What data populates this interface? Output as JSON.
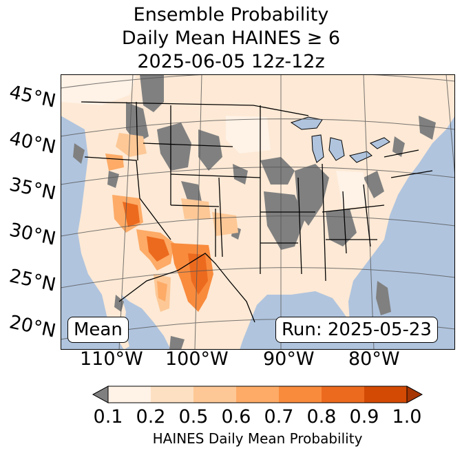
{
  "title": {
    "line1": "Ensemble Probability",
    "line2": "Daily Mean HAINES ≥ 6",
    "line3": "2025-06-05 12z-12z"
  },
  "map": {
    "lat_labels": [
      "45°N",
      "40°N",
      "35°N",
      "30°N",
      "25°N",
      "20°N"
    ],
    "lon_labels": [
      "110°W",
      "100°W",
      "90°W",
      "80°W"
    ],
    "mean_badge": "Mean",
    "run_badge": "Run: 2025-05-23",
    "colors": {
      "ocean": "#b0c4de",
      "land_base": "#fde9d5",
      "missing": "#808080",
      "border": "#000000",
      "gridline": "#555555"
    }
  },
  "colorbar": {
    "label": "HAINES Daily Mean Probability",
    "ticks": [
      "0.1",
      "0.2",
      "0.5",
      "0.6",
      "0.7",
      "0.8",
      "0.9",
      "1.0"
    ],
    "under_color": "#808080",
    "bins": [
      {
        "range": "0.1-0.2",
        "color": "#fff2e6"
      },
      {
        "range": "0.2-0.5",
        "color": "#fde0c2"
      },
      {
        "range": "0.5-0.6",
        "color": "#fdc896"
      },
      {
        "range": "0.6-0.7",
        "color": "#fdab67"
      },
      {
        "range": "0.7-0.8",
        "color": "#f98b3d"
      },
      {
        "range": "0.8-0.9",
        "color": "#ec6a1e"
      },
      {
        "range": "0.9-1.0",
        "color": "#d34a05"
      }
    ],
    "over_color": "#a63603"
  }
}
